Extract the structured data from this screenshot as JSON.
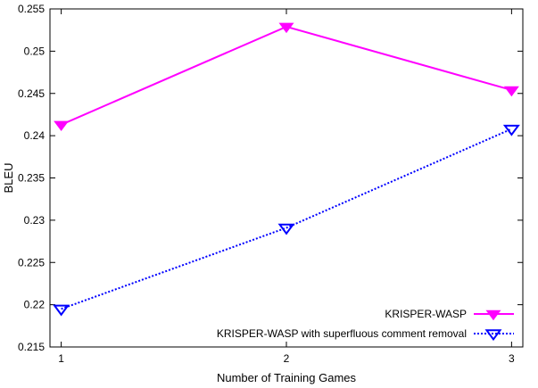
{
  "chart_data": {
    "type": "line",
    "title": "",
    "xlabel": "Number of Training Games",
    "ylabel": "BLEU",
    "x": [
      1,
      2,
      3
    ],
    "x_ticks": [
      "1",
      "2",
      "3"
    ],
    "y_ticks": [
      "0.215",
      "0.22",
      "0.225",
      "0.23",
      "0.235",
      "0.24",
      "0.245",
      "0.25",
      "0.255"
    ],
    "xlim": [
      0.95,
      3.05
    ],
    "ylim": [
      0.215,
      0.255
    ],
    "grid": false,
    "legend_position": "bottom-right",
    "series": [
      {
        "name": "KRISPER-WASP",
        "values": [
          0.2413,
          0.2529,
          0.2454
        ],
        "color": "#ff00ff",
        "line_style": "solid",
        "marker": "filled-down-triangle"
      },
      {
        "name": "KRISPER-WASP with superfluous comment removal",
        "values": [
          0.2195,
          0.2291,
          0.2408
        ],
        "color": "#0000ff",
        "line_style": "dotted",
        "marker": "open-down-triangle"
      }
    ]
  }
}
